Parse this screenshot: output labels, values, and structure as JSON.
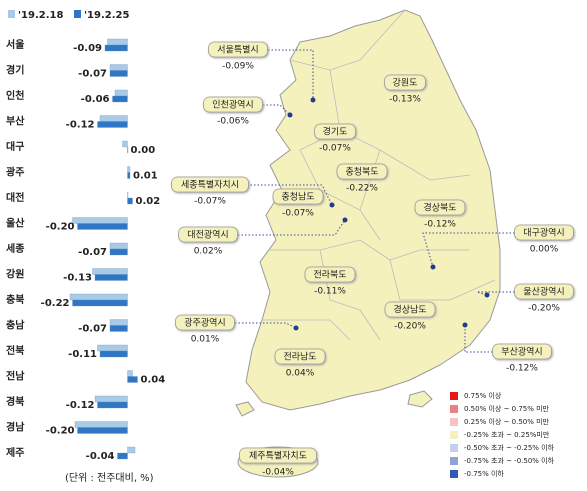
{
  "chart_data": [
    {
      "type": "bar",
      "orientation": "horizontal",
      "categories": [
        "서울",
        "경기",
        "인천",
        "부산",
        "대구",
        "광주",
        "대전",
        "울산",
        "세종",
        "강원",
        "충북",
        "충남",
        "전북",
        "전남",
        "경북",
        "경남",
        "제주"
      ],
      "series": [
        {
          "name": "'19.2.18",
          "color": "#a9cbe8",
          "values": [
            -0.08,
            -0.07,
            -0.05,
            -0.11,
            -0.02,
            0.01,
            0.0,
            -0.22,
            -0.07,
            -0.14,
            -0.23,
            -0.07,
            -0.12,
            0.02,
            -0.13,
            -0.21,
            0.03
          ]
        },
        {
          "name": "'19.2.25",
          "color": "#2f77c4",
          "values": [
            -0.09,
            -0.07,
            -0.06,
            -0.12,
            0.0,
            0.01,
            0.02,
            -0.2,
            -0.07,
            -0.13,
            -0.22,
            -0.07,
            -0.11,
            0.04,
            -0.12,
            -0.2,
            -0.04
          ],
          "value_labels": [
            "-0.09",
            "-0.07",
            "-0.06",
            "-0.12",
            "0.00",
            "0.01",
            "0.02",
            "-0.20",
            "-0.07",
            "-0.13",
            "-0.22",
            "-0.07",
            "-0.11",
            "0.04",
            "-0.12",
            "-0.20",
            "-0.04"
          ]
        }
      ],
      "xlim": [
        -0.25,
        0.05
      ],
      "note": "(단위 : 전주대비, %)"
    },
    {
      "type": "map",
      "regions": [
        {
          "name": "서울특별시",
          "value": -0.09,
          "value_label": "-0.09%"
        },
        {
          "name": "인천광역시",
          "value": -0.06,
          "value_label": "-0.06%"
        },
        {
          "name": "강원도",
          "value": -0.13,
          "value_label": "-0.13%"
        },
        {
          "name": "경기도",
          "value": -0.07,
          "value_label": "-0.07%"
        },
        {
          "name": "충청북도",
          "value": -0.22,
          "value_label": "-0.22%"
        },
        {
          "name": "세종특별자치시",
          "value": -0.07,
          "value_label": "-0.07%"
        },
        {
          "name": "충청남도",
          "value": -0.07,
          "value_label": "-0.07%"
        },
        {
          "name": "경상북도",
          "value": -0.12,
          "value_label": "-0.12%"
        },
        {
          "name": "대구광역시",
          "value": 0.0,
          "value_label": "0.00%"
        },
        {
          "name": "대전광역시",
          "value": 0.02,
          "value_label": "0.02%"
        },
        {
          "name": "전라북도",
          "value": -0.11,
          "value_label": "-0.11%"
        },
        {
          "name": "울산광역시",
          "value": -0.2,
          "value_label": "-0.20%"
        },
        {
          "name": "광주광역시",
          "value": 0.01,
          "value_label": "0.01%"
        },
        {
          "name": "경상남도",
          "value": -0.2,
          "value_label": "-0.20%"
        },
        {
          "name": "부산광역시",
          "value": -0.12,
          "value_label": "-0.12%"
        },
        {
          "name": "전라남도",
          "value": 0.04,
          "value_label": "0.04%"
        },
        {
          "name": "제주특별자치도",
          "value": -0.04,
          "value_label": "-0.04%"
        }
      ],
      "legend": [
        {
          "label": "0.75% 이상",
          "color": "#e31a1c"
        },
        {
          "label": "0.50% 이상 ~ 0.75% 미만",
          "color": "#f08080"
        },
        {
          "label": "0.25% 이상 ~ 0.50% 미만",
          "color": "#f5c4c4"
        },
        {
          "label": "-0.25% 초과 ~ 0.25%미만",
          "color": "#f5f1bd"
        },
        {
          "label": "-0.50% 초과 ~ -0.25% 이하",
          "color": "#c6d0ee"
        },
        {
          "label": "-0.75% 초과 ~ -0.50% 이하",
          "color": "#8ea3d8"
        },
        {
          "label": "-0.75% 이하",
          "color": "#2f5bb5"
        }
      ]
    }
  ]
}
